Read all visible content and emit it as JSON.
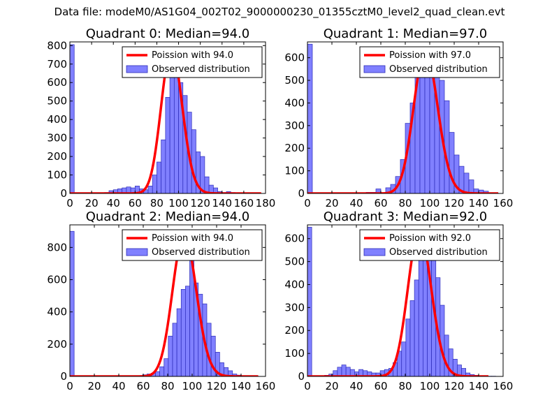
{
  "figure": {
    "suptitle": "Data file: modeM0/AS1G04_002T02_9000000230_01355cztM0_level2_quad_clean.evt"
  },
  "colors": {
    "bar_fill": "#8080ff",
    "bar_edge": "#2b2bb8",
    "curve": "#ff0000"
  },
  "chart_data": [
    {
      "type": "bar",
      "title": "Quadrant 0: Median=94.0",
      "xlim": [
        0,
        180
      ],
      "ylim": [
        0,
        820
      ],
      "xticks": [
        0,
        20,
        40,
        60,
        80,
        100,
        120,
        140,
        160,
        180
      ],
      "yticks": [
        0,
        100,
        200,
        300,
        400,
        500,
        600,
        700,
        800
      ],
      "legend_placement": "top-right",
      "legend": {
        "curve": "Poission with 94.0",
        "hist": "Observed distribution"
      },
      "poisson_mean": 94,
      "poisson_peak": 780,
      "curve_x_range": [
        0,
        176
      ],
      "bin_edges": [
        0,
        4,
        8,
        12,
        16,
        20,
        24,
        28,
        32,
        36,
        40,
        44,
        48,
        52,
        56,
        60,
        64,
        68,
        72,
        76,
        80,
        84,
        88,
        92,
        96,
        100,
        104,
        108,
        112,
        116,
        120,
        124,
        128,
        132,
        136,
        140,
        144,
        148,
        152,
        156,
        160,
        164,
        168,
        172,
        176
      ],
      "counts": [
        805,
        2,
        1,
        1,
        1,
        2,
        2,
        3,
        5,
        15,
        20,
        25,
        30,
        35,
        30,
        40,
        25,
        20,
        40,
        100,
        170,
        290,
        520,
        660,
        775,
        600,
        530,
        440,
        345,
        225,
        200,
        90,
        45,
        30,
        10,
        5,
        10,
        5,
        3,
        2,
        2,
        1,
        1,
        1
      ]
    },
    {
      "type": "bar",
      "title": "Quadrant 1: Median=97.0",
      "xlim": [
        0,
        160
      ],
      "ylim": [
        0,
        670
      ],
      "xticks": [
        0,
        20,
        40,
        60,
        80,
        100,
        120,
        140,
        160
      ],
      "yticks": [
        0,
        100,
        200,
        300,
        400,
        500,
        600
      ],
      "legend_placement": "top-right",
      "legend": {
        "curve": "Poission with 97.0",
        "hist": "Observed distribution"
      },
      "poisson_mean": 97,
      "poisson_peak": 630,
      "curve_x_range": [
        0,
        156
      ],
      "bin_edges": [
        0,
        4,
        8,
        12,
        16,
        20,
        24,
        28,
        32,
        36,
        40,
        44,
        48,
        52,
        56,
        60,
        64,
        68,
        72,
        76,
        80,
        84,
        88,
        92,
        96,
        100,
        104,
        108,
        112,
        116,
        120,
        124,
        128,
        132,
        136,
        140,
        144,
        148,
        152,
        156
      ],
      "counts": [
        660,
        1,
        1,
        1,
        1,
        1,
        1,
        1,
        2,
        2,
        3,
        3,
        5,
        5,
        20,
        3,
        25,
        40,
        75,
        150,
        310,
        400,
        530,
        610,
        590,
        580,
        520,
        500,
        410,
        270,
        170,
        120,
        90,
        60,
        20,
        15,
        10,
        3,
        2
      ]
    },
    {
      "type": "bar",
      "title": "Quadrant 2: Median=94.0",
      "xlim": [
        0,
        160
      ],
      "ylim": [
        0,
        940
      ],
      "xticks": [
        0,
        20,
        40,
        60,
        80,
        100,
        120,
        140,
        160
      ],
      "yticks": [
        0,
        200,
        400,
        600,
        800
      ],
      "legend_placement": "top-right",
      "legend": {
        "curve": "Poission with 94.0",
        "hist": "Observed distribution"
      },
      "poisson_mean": 94,
      "poisson_peak": 880,
      "curve_x_range": [
        0,
        154
      ],
      "bin_edges": [
        0,
        3.5,
        7,
        10.5,
        14,
        17.5,
        21,
        24.5,
        28,
        31.5,
        35,
        38.5,
        42,
        45.5,
        49,
        52.5,
        56,
        59.5,
        63,
        66.5,
        70,
        73.5,
        77,
        80.5,
        84,
        87.5,
        91,
        94.5,
        98,
        101.5,
        105,
        108.5,
        112,
        115.5,
        119,
        122.5,
        126,
        129.5,
        133,
        136.5,
        140,
        143.5,
        147,
        150.5,
        154
      ],
      "counts": [
        900,
        3,
        2,
        2,
        2,
        2,
        2,
        2,
        2,
        2,
        2,
        2,
        3,
        3,
        3,
        3,
        5,
        10,
        15,
        20,
        30,
        60,
        110,
        250,
        330,
        420,
        540,
        560,
        830,
        580,
        510,
        450,
        330,
        250,
        150,
        85,
        55,
        35,
        15,
        8,
        5,
        5,
        3,
        2
      ]
    },
    {
      "type": "bar",
      "title": "Quadrant 3: Median=92.0",
      "xlim": [
        0,
        160
      ],
      "ylim": [
        0,
        660
      ],
      "xticks": [
        0,
        20,
        40,
        60,
        80,
        100,
        120,
        140,
        160
      ],
      "yticks": [
        0,
        100,
        200,
        300,
        400,
        500,
        600
      ],
      "legend_placement": "top-right",
      "legend": {
        "curve": "Poission with 92.0",
        "hist": "Observed distribution"
      },
      "poisson_mean": 92,
      "poisson_peak": 630,
      "curve_x_range": [
        0,
        148
      ],
      "bin_edges": [
        0,
        3.5,
        7,
        10.5,
        14,
        17.5,
        21,
        24.5,
        28,
        31.5,
        35,
        38.5,
        42,
        45.5,
        49,
        52.5,
        56,
        59.5,
        63,
        66.5,
        70,
        73.5,
        77,
        80.5,
        84,
        87.5,
        91,
        94.5,
        98,
        101.5,
        105,
        108.5,
        112,
        115.5,
        119,
        122.5,
        126,
        129.5,
        133,
        136.5,
        140,
        143.5,
        147,
        150.5,
        154
      ],
      "counts": [
        650,
        2,
        2,
        3,
        5,
        10,
        25,
        40,
        50,
        40,
        30,
        20,
        30,
        25,
        20,
        15,
        15,
        25,
        30,
        35,
        60,
        110,
        150,
        250,
        330,
        420,
        510,
        600,
        590,
        520,
        430,
        310,
        180,
        120,
        75,
        50,
        35,
        15,
        8,
        5,
        3,
        2,
        1,
        1
      ]
    }
  ]
}
